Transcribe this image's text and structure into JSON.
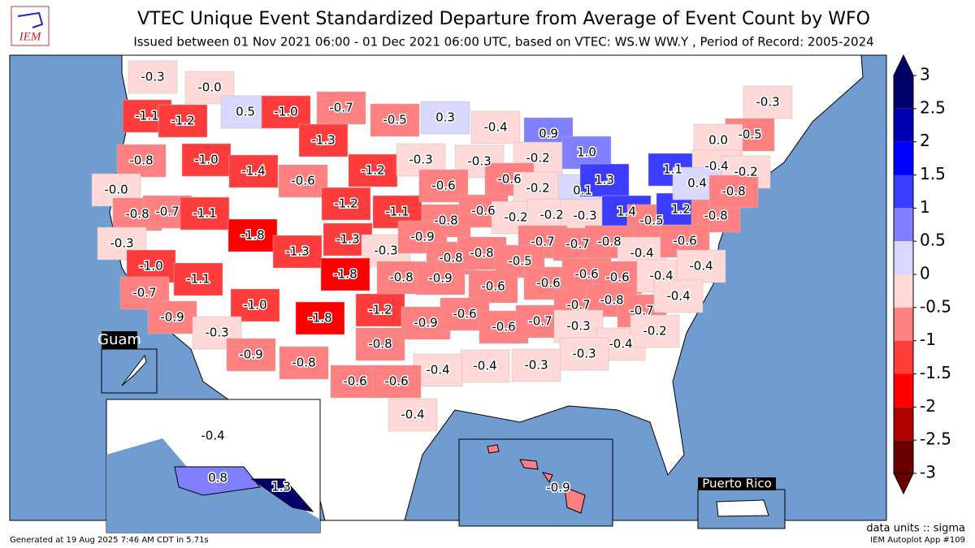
{
  "header": {
    "logo": "IEM",
    "title": "VTEC Unique Event Standardized Departure from Average of Event Count by WFO",
    "subtitle": "Issued between 01 Nov 2021 06:00 - 01 Dec 2021 06:00 UTC, based on VTEC: WS.W WW.Y  , Period of Record: 2005-2024"
  },
  "map": {
    "insets": [
      "Guam",
      "Puerto Rico"
    ],
    "labels": [
      "-0.3",
      "-0.0",
      "0.5",
      "-1.0",
      "-0.7",
      "-0.5",
      "0.3",
      "-0.4",
      "0.9",
      "-1.1",
      "-1.2",
      "-1.3",
      "-0.8",
      "-1.0",
      "-1.4",
      "-0.6",
      "-1.2",
      "-0.3",
      "-0.3",
      "-0.2",
      "1.0",
      "-0.6",
      "-0.0",
      "-0.8",
      "-0.7",
      "-1.1",
      "-1.2",
      "-1.1",
      "-0.6",
      "-0.2",
      "0.1",
      "1.3",
      "-0.8",
      "-0.6",
      "-0.2",
      "-0.2",
      "-0.3",
      "1.4",
      "-0.5",
      "1.2",
      "-0.8",
      "-0.3",
      "-1.8",
      "-1.3",
      "-1.3",
      "-0.3",
      "-0.9",
      "-0.8",
      "-0.8",
      "-0.7",
      "-0.7",
      "-0.8",
      "-0.4",
      "-0.6",
      "-1.0",
      "-1.1",
      "-1.8",
      "-0.8",
      "-0.9",
      "-0.5",
      "-0.6",
      "-0.6",
      "-0.6",
      "-0.6",
      "-0.4",
      "-0.4",
      "-0.7",
      "-0.9",
      "-1.0",
      "-1.8",
      "-1.2",
      "-0.9",
      "-0.6",
      "-0.6",
      "-0.7",
      "-0.7",
      "-0.8",
      "-0.7",
      "-0.4",
      "-0.3",
      "-0.3",
      "-0.4",
      "-0.2",
      "-0.9",
      "-0.8",
      "-0.8",
      "-0.3",
      "-0.3",
      "-0.4",
      "-0.4",
      "-0.6",
      "-0.6",
      "-0.4",
      "-0.3",
      "-0.5",
      "0.0",
      "1.1",
      "-0.4",
      "-0.2",
      "0.4",
      "-0.8",
      "-0.4",
      "0.8",
      "1.3",
      "-0.9"
    ]
  },
  "colorbar": {
    "ticks": [
      3,
      2.5,
      2,
      1.5,
      1,
      0.5,
      0,
      -0.5,
      -1,
      -1.5,
      -2,
      -2.5,
      -3
    ],
    "colors": [
      "#00006b",
      "#0000b0",
      "#0000ff",
      "#3c3cff",
      "#8080ff",
      "#d8d8ff",
      "#ffd8d8",
      "#ff8080",
      "#ff3c3c",
      "#ff0000",
      "#b00000",
      "#6b0000"
    ],
    "units": "data units :: sigma"
  },
  "footer": {
    "generated": "Generated at 19 Aug 2025 7:46 AM CDT in 5.71s",
    "app": "IEM Autoplot App #109"
  }
}
